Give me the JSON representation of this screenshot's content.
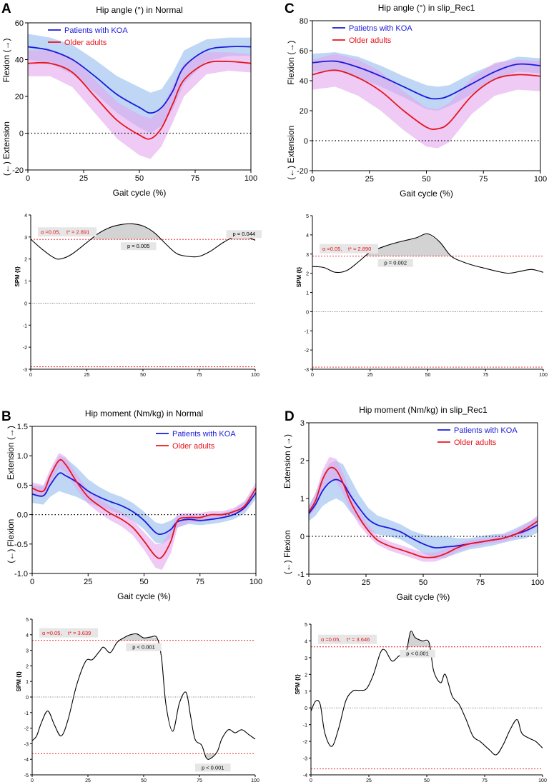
{
  "chart_data": [
    {
      "panel": "A",
      "type": "line",
      "title": "Hip angle (°) in Normal",
      "xlabel": "Gait cycle (%)",
      "ylabel_top": "Flexion (→)",
      "ylabel_bottom": "(←) Extension",
      "xlim": [
        0,
        100
      ],
      "ylim": [
        -20,
        60
      ],
      "xticks": [
        0,
        25,
        50,
        75,
        100
      ],
      "yticks": [
        -20,
        0,
        20,
        40,
        60
      ],
      "zero_line": true,
      "legend": "top-left",
      "series": [
        {
          "name": "Patients with KOA",
          "color": "#1a1adb",
          "band": "#a9c8f2",
          "x": [
            0,
            10,
            20,
            30,
            40,
            50,
            55,
            60,
            65,
            70,
            80,
            90,
            100
          ],
          "mean": [
            47,
            45,
            40,
            31,
            21,
            14,
            11,
            14,
            23,
            36,
            45,
            47,
            47
          ],
          "sd": [
            7,
            7,
            8,
            9,
            10,
            11,
            11,
            10,
            10,
            9,
            6,
            5,
            5
          ]
        },
        {
          "name": "Older adults",
          "color": "#e8141c",
          "band": "#e3a6ee",
          "x": [
            0,
            10,
            20,
            30,
            40,
            50,
            55,
            60,
            65,
            70,
            80,
            90,
            100
          ],
          "mean": [
            38,
            38,
            33,
            20,
            7,
            -1,
            -3,
            3,
            16,
            29,
            38,
            39,
            38
          ],
          "sd": [
            7,
            7,
            8,
            9,
            10,
            11,
            11,
            10,
            10,
            9,
            6,
            5,
            5
          ]
        }
      ]
    },
    {
      "panel": "A-SPM",
      "type": "line",
      "ylabel": "SPM {t}",
      "xlim": [
        0,
        100
      ],
      "ylim": [
        -3,
        4
      ],
      "xticks": [
        0,
        25,
        50,
        75,
        100
      ],
      "yticks": [
        -3,
        -2,
        -1,
        0,
        1,
        2,
        3,
        4
      ],
      "threshold": 2.891,
      "threshold_label": {
        "alpha": "α =0.05,",
        "tstar": "t* = 2.891"
      },
      "annotations": [
        {
          "text": "p = 0.005",
          "x": 48
        },
        {
          "text": "p = 0.044",
          "x": 95
        }
      ],
      "x": [
        0,
        5,
        10,
        13,
        18,
        25,
        30,
        35,
        40,
        45,
        50,
        55,
        60,
        65,
        70,
        75,
        80,
        85,
        90,
        95,
        100
      ],
      "values": [
        2.9,
        2.45,
        2.08,
        2.0,
        2.2,
        2.75,
        3.15,
        3.42,
        3.56,
        3.6,
        3.5,
        3.2,
        2.7,
        2.25,
        2.12,
        2.12,
        2.35,
        2.7,
        2.98,
        3.05,
        2.85
      ]
    },
    {
      "panel": "C",
      "type": "line",
      "title": "Hip angle (°) in slip_Rec1",
      "xlabel": "Gait cycle (%)",
      "ylabel_top": "Flexion (→)",
      "ylabel_bottom": "(←) Extension",
      "xlim": [
        0,
        100
      ],
      "ylim": [
        -20,
        80
      ],
      "xticks": [
        0,
        25,
        50,
        75,
        100
      ],
      "yticks": [
        -20,
        0,
        20,
        40,
        60,
        80
      ],
      "zero_line": true,
      "legend": "top-left",
      "series": [
        {
          "name": "Patietns with KOA",
          "color": "#1a1adb",
          "band": "#a9c8f2",
          "x": [
            0,
            10,
            20,
            30,
            40,
            50,
            55,
            60,
            70,
            80,
            90,
            100
          ],
          "mean": [
            52,
            53,
            49,
            43,
            36,
            29,
            28,
            30,
            38,
            46,
            51,
            50
          ],
          "sd": [
            6,
            6,
            7,
            7,
            7,
            8,
            8,
            7,
            7,
            5,
            5,
            5
          ]
        },
        {
          "name": "Older adults",
          "color": "#e8141c",
          "band": "#e3a6ee",
          "x": [
            0,
            10,
            20,
            30,
            40,
            50,
            55,
            60,
            70,
            80,
            90,
            100
          ],
          "mean": [
            44,
            47,
            42,
            33,
            20,
            9,
            8,
            12,
            30,
            41,
            44,
            43
          ],
          "sd": [
            10,
            11,
            12,
            13,
            13,
            13,
            13,
            13,
            12,
            11,
            10,
            10
          ]
        }
      ]
    },
    {
      "panel": "C-SPM",
      "type": "line",
      "ylabel": "SPM {t}",
      "xlim": [
        0,
        100
      ],
      "ylim": [
        -3,
        5
      ],
      "xticks": [
        0,
        25,
        50,
        75,
        100
      ],
      "yticks": [
        -3,
        -2,
        -1,
        0,
        1,
        2,
        3,
        4,
        5
      ],
      "threshold": 2.89,
      "threshold_label": {
        "alpha": "α =0.05,",
        "tstar": "t* = 2.890"
      },
      "annotations": [
        {
          "text": "p = 0.002",
          "x": 36
        }
      ],
      "x": [
        0,
        5,
        10,
        15,
        20,
        25,
        30,
        35,
        40,
        45,
        50,
        55,
        60,
        65,
        70,
        75,
        80,
        85,
        90,
        95,
        100
      ],
      "values": [
        2.35,
        2.3,
        2.05,
        2.15,
        2.6,
        3.1,
        3.35,
        3.55,
        3.7,
        3.85,
        4.05,
        3.65,
        2.9,
        2.6,
        2.4,
        2.25,
        2.1,
        2.0,
        2.1,
        2.2,
        2.05
      ]
    },
    {
      "panel": "B",
      "type": "line",
      "title": "Hip moment (Nm/kg) in Normal",
      "xlabel": "Gait cycle (%)",
      "ylabel_top": "Extension (→)",
      "ylabel_bottom": "(←) Flexion",
      "xlim": [
        0,
        100
      ],
      "ylim": [
        -1.0,
        1.5
      ],
      "xticks": [
        0,
        25,
        50,
        75,
        100
      ],
      "yticks": [
        -1.0,
        -0.5,
        0.0,
        0.5,
        1.0,
        1.5
      ],
      "zero_line": true,
      "legend": "top-right",
      "series": [
        {
          "name": "Patients with KOA",
          "color": "#1a1adb",
          "band": "#a9c8f2",
          "x": [
            0,
            5,
            8,
            12,
            15,
            20,
            25,
            30,
            35,
            40,
            45,
            50,
            55,
            58,
            62,
            65,
            70,
            75,
            80,
            85,
            90,
            95,
            100
          ],
          "mean": [
            0.35,
            0.32,
            0.5,
            0.7,
            0.66,
            0.55,
            0.4,
            0.3,
            0.22,
            0.15,
            0.05,
            -0.1,
            -0.3,
            -0.33,
            -0.25,
            -0.12,
            -0.08,
            -0.1,
            -0.08,
            -0.05,
            0.0,
            0.12,
            0.37
          ],
          "sd": [
            0.15,
            0.15,
            0.2,
            0.3,
            0.3,
            0.25,
            0.2,
            0.17,
            0.15,
            0.15,
            0.15,
            0.15,
            0.17,
            0.17,
            0.15,
            0.1,
            0.08,
            0.08,
            0.08,
            0.08,
            0.08,
            0.1,
            0.1
          ]
        },
        {
          "name": "Older adults",
          "color": "#e8141c",
          "band": "#e3a6ee",
          "x": [
            0,
            5,
            8,
            12,
            15,
            20,
            25,
            30,
            35,
            40,
            45,
            50,
            55,
            58,
            62,
            65,
            70,
            75,
            80,
            85,
            90,
            95,
            100
          ],
          "mean": [
            0.45,
            0.4,
            0.65,
            0.92,
            0.85,
            0.55,
            0.3,
            0.15,
            0.02,
            -0.08,
            -0.22,
            -0.45,
            -0.7,
            -0.72,
            -0.45,
            -0.1,
            -0.05,
            -0.05,
            0.0,
            0.0,
            0.05,
            0.15,
            0.45
          ],
          "sd": [
            0.1,
            0.1,
            0.12,
            0.13,
            0.13,
            0.13,
            0.12,
            0.12,
            0.12,
            0.12,
            0.13,
            0.15,
            0.2,
            0.22,
            0.2,
            0.12,
            0.08,
            0.08,
            0.06,
            0.06,
            0.06,
            0.08,
            0.1
          ]
        }
      ]
    },
    {
      "panel": "B-SPM",
      "type": "line",
      "ylabel": "SPM {t}",
      "xlim": [
        0,
        100
      ],
      "ylim": [
        -5,
        5
      ],
      "xticks": [
        0,
        25,
        50,
        75,
        100
      ],
      "yticks": [
        -5,
        -4,
        -3,
        -2,
        -1,
        0,
        1,
        2,
        3,
        4,
        5
      ],
      "threshold": 3.639,
      "threshold_label": {
        "alpha": "α =0.05,",
        "tstar": "t* = 3.639"
      },
      "annotations": [
        {
          "text": "p < 0.001",
          "x": 50
        },
        {
          "text": "p < 0.001",
          "x": 81
        }
      ],
      "x": [
        0,
        2,
        4,
        7,
        10,
        13,
        16,
        20,
        24,
        27,
        30,
        32,
        35,
        38,
        41,
        44,
        47,
        50,
        53,
        56,
        58,
        60,
        63,
        66,
        69,
        71,
        73,
        76,
        78,
        80,
        83,
        85,
        88,
        91,
        94,
        97,
        100
      ],
      "values": [
        -2.8,
        -2.5,
        -1.7,
        -0.9,
        -1.8,
        -2.5,
        -1.5,
        0.8,
        2.3,
        2.4,
        2.9,
        3.2,
        2.85,
        3.5,
        3.8,
        4.0,
        4.05,
        3.8,
        3.85,
        3.8,
        2.5,
        -0.5,
        -2.2,
        -0.4,
        0.3,
        -1.2,
        -2.7,
        -3.1,
        -3.9,
        -3.95,
        -3.5,
        -2.7,
        -2.1,
        -2.3,
        -2.1,
        -2.4,
        -2.7
      ]
    },
    {
      "panel": "D",
      "type": "line",
      "title": "Hip moment (Nm/kg) in slip_Rec1",
      "xlabel": "Gait cycle (%)",
      "ylabel_top": "Extension (→)",
      "ylabel_bottom": "(←) Flexion",
      "xlim": [
        0,
        100
      ],
      "ylim": [
        -1,
        3
      ],
      "xticks": [
        0,
        25,
        50,
        75,
        100
      ],
      "yticks": [
        -1,
        0,
        1,
        2,
        3
      ],
      "zero_line": true,
      "legend": "top-right",
      "series": [
        {
          "name": "Patients with KOA",
          "color": "#1a1adb",
          "band": "#a9c8f2",
          "x": [
            0,
            3,
            6,
            9,
            12,
            15,
            18,
            22,
            26,
            30,
            35,
            40,
            45,
            50,
            55,
            60,
            65,
            70,
            75,
            80,
            85,
            90,
            95,
            100
          ],
          "mean": [
            0.6,
            0.85,
            1.2,
            1.42,
            1.5,
            1.4,
            1.1,
            0.75,
            0.45,
            0.3,
            0.22,
            0.12,
            -0.05,
            -0.2,
            -0.3,
            -0.28,
            -0.25,
            -0.2,
            -0.15,
            -0.1,
            -0.05,
            0.05,
            0.15,
            0.3
          ],
          "sd": [
            0.2,
            0.3,
            0.4,
            0.5,
            0.5,
            0.5,
            0.45,
            0.35,
            0.3,
            0.25,
            0.22,
            0.2,
            0.2,
            0.25,
            0.3,
            0.28,
            0.2,
            0.15,
            0.15,
            0.15,
            0.12,
            0.15,
            0.2,
            0.2
          ]
        },
        {
          "name": "Older adults",
          "color": "#e8141c",
          "band": "#e3a6ee",
          "x": [
            0,
            3,
            6,
            9,
            12,
            15,
            18,
            22,
            26,
            30,
            35,
            40,
            45,
            50,
            55,
            60,
            65,
            70,
            75,
            80,
            85,
            90,
            95,
            100
          ],
          "mean": [
            0.65,
            0.95,
            1.5,
            1.8,
            1.75,
            1.4,
            0.95,
            0.5,
            0.15,
            -0.1,
            -0.25,
            -0.35,
            -0.45,
            -0.55,
            -0.55,
            -0.45,
            -0.3,
            -0.2,
            -0.15,
            -0.1,
            -0.05,
            0.05,
            0.2,
            0.4
          ],
          "sd": [
            0.15,
            0.2,
            0.25,
            0.3,
            0.3,
            0.28,
            0.25,
            0.2,
            0.15,
            0.12,
            0.12,
            0.12,
            0.12,
            0.12,
            0.12,
            0.12,
            0.1,
            0.1,
            0.08,
            0.08,
            0.1,
            0.1,
            0.12,
            0.15
          ]
        }
      ]
    },
    {
      "panel": "D-SPM",
      "type": "line",
      "ylabel": "SPM {t}",
      "xlim": [
        0,
        100
      ],
      "ylim": [
        -4,
        5
      ],
      "xticks": [
        0,
        25,
        50,
        75,
        100
      ],
      "yticks": [
        -4,
        -3,
        -2,
        -1,
        0,
        1,
        2,
        3,
        4,
        5
      ],
      "threshold": 3.646,
      "threshold_label": {
        "alpha": "α =0.05,",
        "tstar": "t* = 3.646"
      },
      "annotations": [
        {
          "text": "p < 0.001",
          "x": 46
        }
      ],
      "x": [
        0,
        2,
        4,
        6,
        9,
        12,
        15,
        18,
        21,
        24,
        27,
        30,
        32,
        35,
        38,
        41,
        43,
        45,
        48,
        51,
        53,
        56,
        58,
        61,
        64,
        67,
        70,
        73,
        77,
        80,
        83,
        86,
        89,
        91,
        94,
        97,
        100
      ],
      "values": [
        -0.2,
        0.4,
        0.2,
        -1.5,
        -2.3,
        -1.2,
        0.4,
        1.0,
        1.05,
        1.15,
        2.0,
        3.3,
        3.45,
        2.8,
        3.1,
        3.3,
        4.55,
        4.2,
        4.0,
        3.9,
        2.2,
        1.5,
        2.0,
        0.7,
        0.2,
        -0.7,
        -1.7,
        -2.0,
        -2.5,
        -2.8,
        -2.2,
        -1.3,
        -0.7,
        -1.5,
        -1.8,
        -2.0,
        -2.4
      ]
    }
  ],
  "panel_labels": {
    "a": "A",
    "b": "B",
    "c": "C",
    "d": "D"
  },
  "colors": {
    "koa": "#1a1adb",
    "older": "#e8141c",
    "koa_band": "#a9c8f2",
    "older_band": "#e3a6ee",
    "threshold": "#e8141c",
    "shade": "#d3d3d3"
  }
}
